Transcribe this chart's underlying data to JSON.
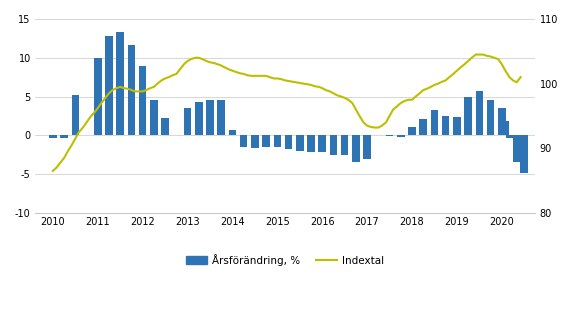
{
  "bar_values": [
    -0.3,
    -0.3,
    5.2,
    10.0,
    12.8,
    13.3,
    11.6,
    8.9,
    4.6,
    2.2,
    0.0,
    3.5,
    4.3,
    4.6,
    4.5,
    0.7,
    -1.5,
    -1.7,
    -1.5,
    -1.5,
    -1.8,
    -2.0,
    -2.2,
    -2.2,
    -2.5,
    -2.5,
    -3.5,
    -3.0,
    -0.1,
    -0.2,
    1.1,
    2.1,
    3.2,
    2.5,
    2.4,
    4.9,
    5.7,
    4.6,
    3.5,
    1.8,
    -0.3,
    -3.5,
    -4.9
  ],
  "bar_x": [
    2010.0,
    2010.25,
    2010.5,
    2011.0,
    2011.25,
    2011.5,
    2011.75,
    2012.0,
    2012.25,
    2012.5,
    2012.75,
    2013.0,
    2013.25,
    2013.5,
    2013.75,
    2014.0,
    2014.25,
    2014.5,
    2014.75,
    2015.0,
    2015.25,
    2015.5,
    2015.75,
    2016.0,
    2016.25,
    2016.5,
    2016.75,
    2017.0,
    2017.5,
    2017.75,
    2018.0,
    2018.25,
    2018.5,
    2018.75,
    2019.0,
    2019.25,
    2019.5,
    2019.75,
    2020.0,
    2020.08,
    2020.17,
    2020.33,
    2020.5
  ],
  "line_x": [
    2010.0,
    2010.08,
    2010.17,
    2010.25,
    2010.33,
    2010.42,
    2010.5,
    2010.58,
    2010.67,
    2010.75,
    2010.83,
    2010.92,
    2011.0,
    2011.08,
    2011.17,
    2011.25,
    2011.33,
    2011.42,
    2011.5,
    2011.58,
    2011.67,
    2011.75,
    2011.83,
    2011.92,
    2012.0,
    2012.08,
    2012.17,
    2012.25,
    2012.33,
    2012.42,
    2012.5,
    2012.58,
    2012.67,
    2012.75,
    2012.83,
    2012.92,
    2013.0,
    2013.08,
    2013.17,
    2013.25,
    2013.33,
    2013.42,
    2013.5,
    2013.58,
    2013.67,
    2013.75,
    2013.83,
    2013.92,
    2014.0,
    2014.08,
    2014.17,
    2014.25,
    2014.33,
    2014.42,
    2014.5,
    2014.58,
    2014.67,
    2014.75,
    2014.83,
    2014.92,
    2015.0,
    2015.08,
    2015.17,
    2015.25,
    2015.33,
    2015.42,
    2015.5,
    2015.58,
    2015.67,
    2015.75,
    2015.83,
    2015.92,
    2016.0,
    2016.08,
    2016.17,
    2016.25,
    2016.33,
    2016.42,
    2016.5,
    2016.58,
    2016.67,
    2016.75,
    2016.83,
    2016.92,
    2017.0,
    2017.08,
    2017.17,
    2017.25,
    2017.33,
    2017.42,
    2017.5,
    2017.58,
    2017.67,
    2017.75,
    2017.83,
    2017.92,
    2018.0,
    2018.08,
    2018.17,
    2018.25,
    2018.33,
    2018.42,
    2018.5,
    2018.58,
    2018.67,
    2018.75,
    2018.83,
    2018.92,
    2019.0,
    2019.08,
    2019.17,
    2019.25,
    2019.33,
    2019.42,
    2019.5,
    2019.58,
    2019.67,
    2019.75,
    2019.83,
    2019.92,
    2020.0,
    2020.08,
    2020.17,
    2020.25,
    2020.33,
    2020.42
  ],
  "line_y": [
    86.5,
    87.0,
    87.8,
    88.5,
    89.5,
    90.5,
    91.5,
    92.5,
    93.2,
    94.0,
    94.8,
    95.5,
    96.2,
    97.0,
    97.8,
    98.5,
    99.0,
    99.3,
    99.5,
    99.3,
    99.2,
    99.0,
    98.8,
    98.8,
    98.8,
    99.0,
    99.3,
    99.5,
    100.0,
    100.5,
    100.8,
    101.0,
    101.3,
    101.5,
    102.2,
    103.0,
    103.5,
    103.8,
    104.0,
    104.0,
    103.8,
    103.5,
    103.3,
    103.2,
    103.0,
    102.8,
    102.5,
    102.2,
    102.0,
    101.8,
    101.6,
    101.5,
    101.3,
    101.2,
    101.2,
    101.2,
    101.2,
    101.2,
    101.0,
    100.8,
    100.8,
    100.7,
    100.5,
    100.4,
    100.3,
    100.2,
    100.1,
    100.0,
    99.9,
    99.8,
    99.6,
    99.5,
    99.3,
    99.0,
    98.8,
    98.5,
    98.2,
    98.0,
    97.8,
    97.5,
    97.0,
    96.0,
    95.0,
    94.0,
    93.5,
    93.3,
    93.2,
    93.2,
    93.5,
    94.0,
    95.0,
    96.0,
    96.5,
    97.0,
    97.3,
    97.5,
    97.5,
    98.0,
    98.5,
    99.0,
    99.2,
    99.5,
    99.8,
    100.0,
    100.3,
    100.5,
    101.0,
    101.5,
    102.0,
    102.5,
    103.0,
    103.5,
    104.0,
    104.5,
    104.5,
    104.5,
    104.3,
    104.2,
    104.0,
    103.8,
    103.0,
    102.0,
    101.0,
    100.5,
    100.2,
    101.0
  ],
  "bar_color": "#2E74B5",
  "line_color": "#BEBE00",
  "left_ylim": [
    -10,
    15
  ],
  "right_ylim": [
    80,
    110
  ],
  "left_yticks": [
    -10,
    -5,
    0,
    5,
    10,
    15
  ],
  "right_yticks": [
    80,
    90,
    100,
    110
  ],
  "xlim": [
    2009.6,
    2020.75
  ],
  "xticks": [
    2010,
    2011,
    2012,
    2013,
    2014,
    2015,
    2016,
    2017,
    2018,
    2019,
    2020
  ],
  "legend_bar_label": "Årsförändring, %",
  "legend_line_label": "Indextal",
  "background_color": "#ffffff",
  "grid_color": "#c8c8c8"
}
